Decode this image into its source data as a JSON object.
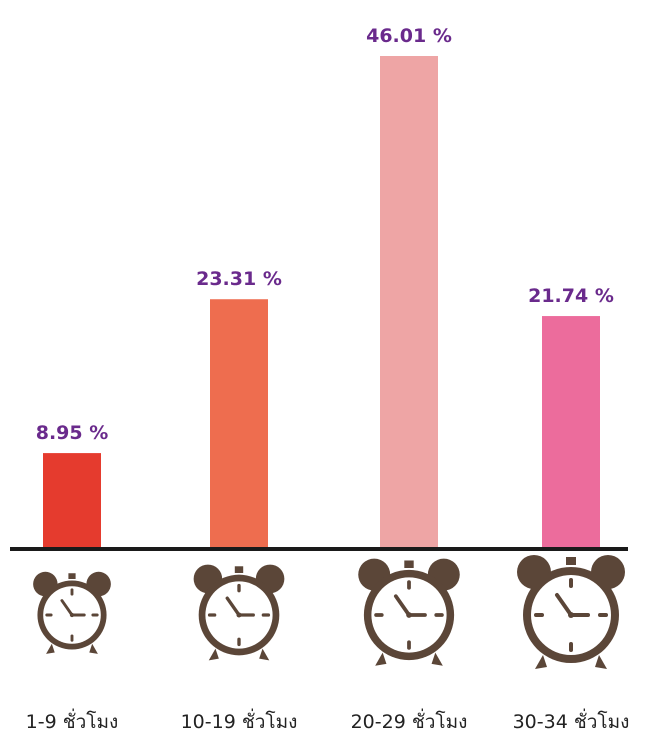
{
  "chart_data": {
    "type": "bar",
    "title": "",
    "xlabel": "",
    "ylabel": "",
    "ylim": [
      0,
      46.01
    ],
    "grid": false,
    "legend": "none",
    "categories": [
      "1-9 ชั่วโมง",
      "10-19 ชั่วโมง",
      "20-29 ชั่วโมง",
      "30-34 ชั่วโมง"
    ],
    "values": [
      8.95,
      23.31,
      46.01,
      21.74
    ],
    "data_labels": [
      "8.95 %",
      "23.31 %",
      "46.01 %",
      "21.74 %"
    ],
    "bar_colors": [
      "#e53b2e",
      "#ee6d4f",
      "#eea5a5",
      "#ec6c9c"
    ],
    "label_color": "#6a2a8c",
    "axis_color": "#1a1a1a",
    "icon": "alarm-clock-icon",
    "icon_color": "#5b4638",
    "icon_scale": [
      0.72,
      0.84,
      0.94,
      1.0
    ]
  }
}
